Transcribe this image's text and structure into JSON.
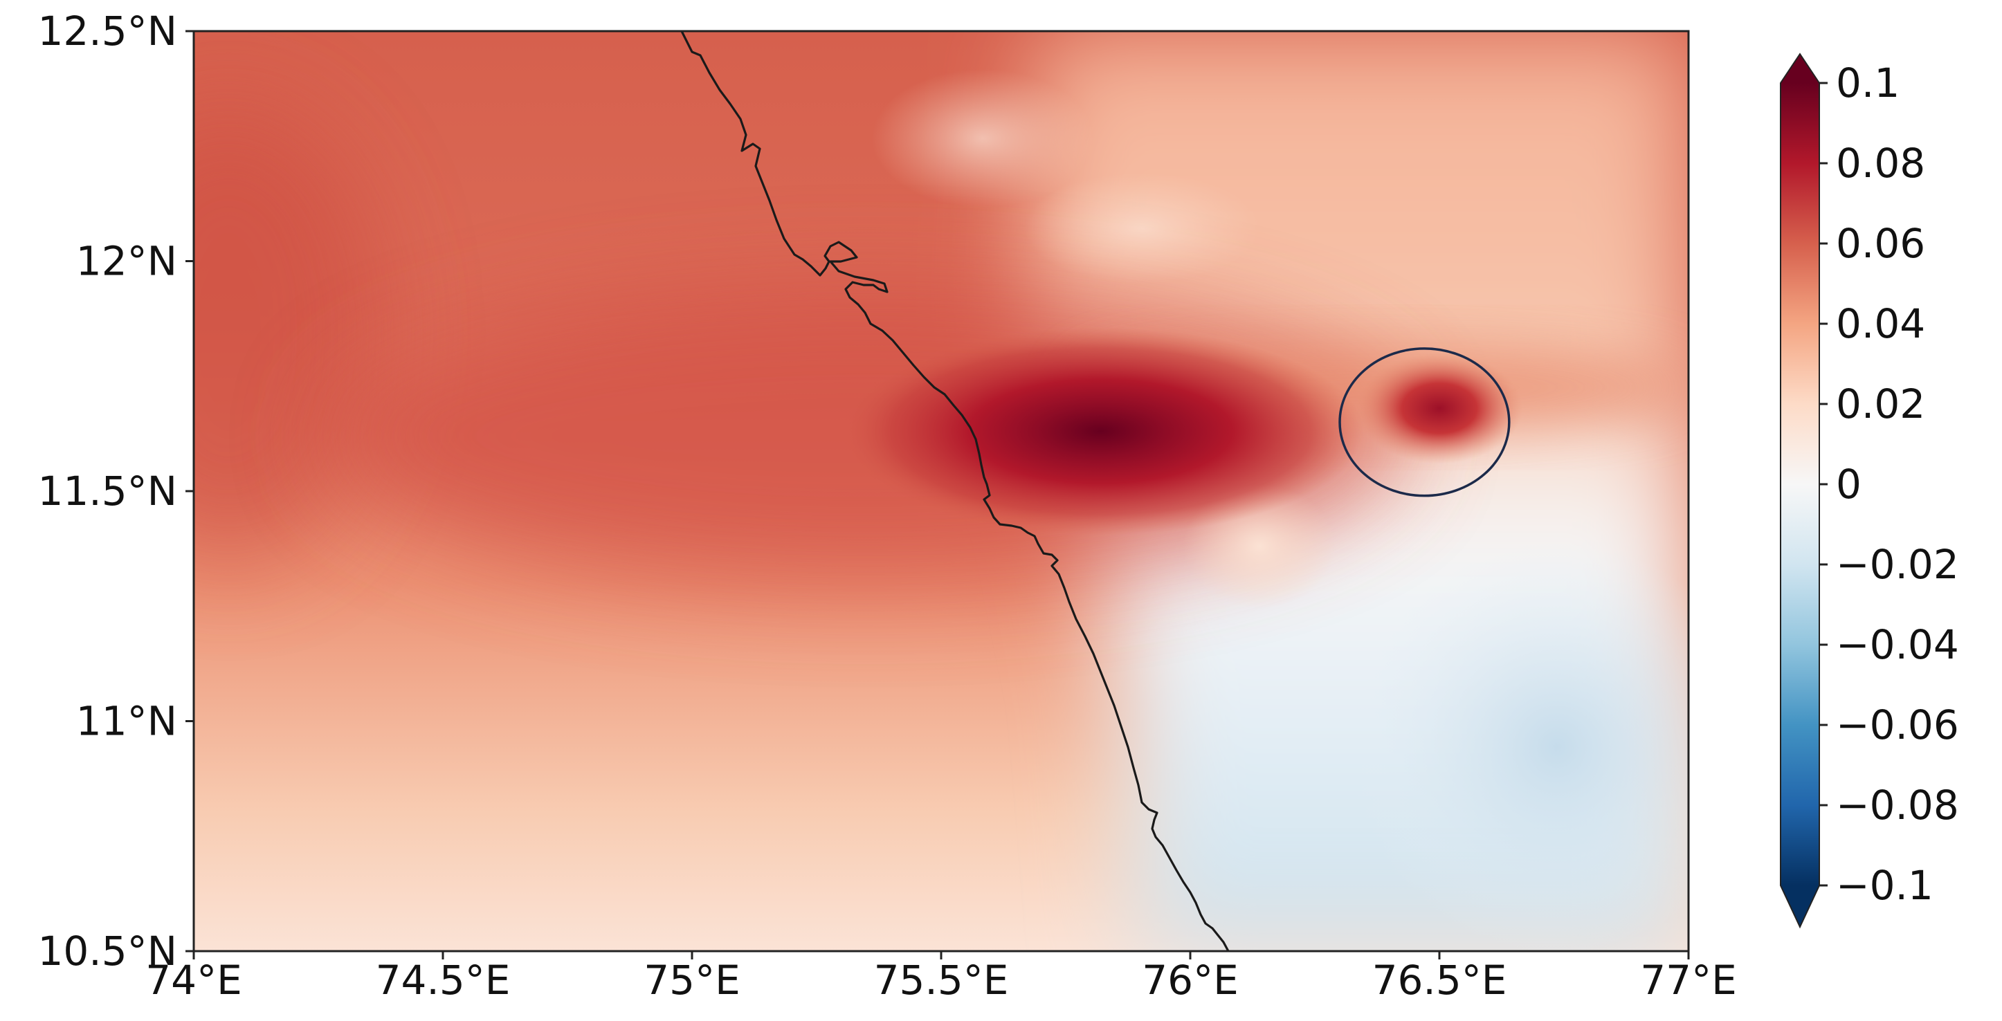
{
  "map": {
    "extent": {
      "lon": [
        74.0,
        77.0
      ],
      "lat": [
        10.5,
        12.5
      ]
    },
    "x_ticks": [
      {
        "value": 74.0,
        "label": "74°E"
      },
      {
        "value": 74.5,
        "label": "74.5°E"
      },
      {
        "value": 75.0,
        "label": "75°E"
      },
      {
        "value": 75.5,
        "label": "75.5°E"
      },
      {
        "value": 76.0,
        "label": "76°E"
      },
      {
        "value": 76.5,
        "label": "76.5°E"
      },
      {
        "value": 77.0,
        "label": "77°E"
      }
    ],
    "y_ticks": [
      {
        "value": 12.5,
        "label": "12.5°N"
      },
      {
        "value": 12.0,
        "label": "12°N"
      },
      {
        "value": 11.5,
        "label": "11.5°N"
      },
      {
        "value": 11.0,
        "label": "11°N"
      },
      {
        "value": 10.5,
        "label": "10.5°N"
      }
    ],
    "highlight_ellipse": {
      "center_lon": 76.47,
      "center_lat": 11.65,
      "lon_radius": 0.17,
      "lat_radius": 0.16
    },
    "field_peaks": [
      {
        "lon": 75.82,
        "lat": 11.63,
        "value": 0.09
      },
      {
        "lon": 76.5,
        "lat": 11.68,
        "value": 0.075
      }
    ]
  },
  "colorbar": {
    "colormap": "RdBu_r",
    "range": [
      -0.1,
      0.1
    ],
    "extend": "both",
    "ticks": [
      {
        "value": 0.1,
        "label": "0.1"
      },
      {
        "value": 0.08,
        "label": "0.08"
      },
      {
        "value": 0.06,
        "label": "0.06"
      },
      {
        "value": 0.04,
        "label": "0.04"
      },
      {
        "value": 0.02,
        "label": "0.02"
      },
      {
        "value": 0.0,
        "label": "0"
      },
      {
        "value": -0.02,
        "label": "−0.02"
      },
      {
        "value": -0.04,
        "label": "−0.04"
      },
      {
        "value": -0.06,
        "label": "−0.06"
      },
      {
        "value": -0.08,
        "label": "−0.08"
      },
      {
        "value": -0.1,
        "label": "−0.1"
      }
    ],
    "stops": [
      {
        "value": -0.1,
        "color": "#053061"
      },
      {
        "value": -0.08,
        "color": "#2166ac"
      },
      {
        "value": -0.06,
        "color": "#4393c3"
      },
      {
        "value": -0.04,
        "color": "#92c5de"
      },
      {
        "value": -0.02,
        "color": "#d1e5f0"
      },
      {
        "value": 0.0,
        "color": "#f7f7f7"
      },
      {
        "value": 0.02,
        "color": "#fddbc7"
      },
      {
        "value": 0.04,
        "color": "#f4a582"
      },
      {
        "value": 0.06,
        "color": "#d6604d"
      },
      {
        "value": 0.08,
        "color": "#b2182b"
      },
      {
        "value": 0.1,
        "color": "#67001f"
      }
    ]
  }
}
